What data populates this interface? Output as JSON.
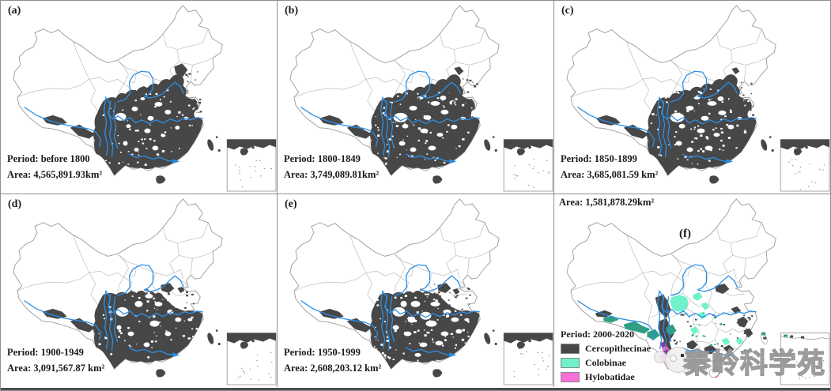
{
  "panels": [
    {
      "id": "a",
      "tag": "(a)",
      "period": "Period: before 1800",
      "area": "Area: 4,565,891.93km²"
    },
    {
      "id": "b",
      "tag": "(b)",
      "period": "Period: 1800-1849",
      "area": "Area: 3,749,089.81km²"
    },
    {
      "id": "c",
      "tag": "(c)",
      "period": "Period: 1850-1899",
      "area": "Area: 3,685,081.59 km²"
    },
    {
      "id": "d",
      "tag": "(d)",
      "period": "Period: 1900-1949",
      "area": "Area: 3,091,567.87 km²"
    },
    {
      "id": "e",
      "tag": "(e)",
      "period": "Period: 1950-1999",
      "area": "Area: 2,608,203.12 km²"
    },
    {
      "id": "f",
      "tag": "(f)",
      "period": "Period: 2000-2020",
      "area": "Area: 1,581,878.29km²"
    }
  ],
  "legend": {
    "period_label": "Period: 2000-2020",
    "entries": [
      {
        "label": "Cercopithecinae",
        "color": "#474747"
      },
      {
        "label": "Colobinae",
        "color": "#6ff2cb"
      },
      {
        "label": "Hylobatidae",
        "color": "#fb6fd8"
      }
    ]
  },
  "watermark": {
    "text": "秦岭科学苑"
  },
  "colors": {
    "distribution": "#474747",
    "river": "#2b8fe8",
    "province_border": "#b3b3b3",
    "outline": "#9a9a9a",
    "colobinae": "#6ff2cb",
    "colobinae_dark": "#2f9e85",
    "hylobatidae": "#fb6fd8",
    "overlap_purple": "#93389e"
  }
}
